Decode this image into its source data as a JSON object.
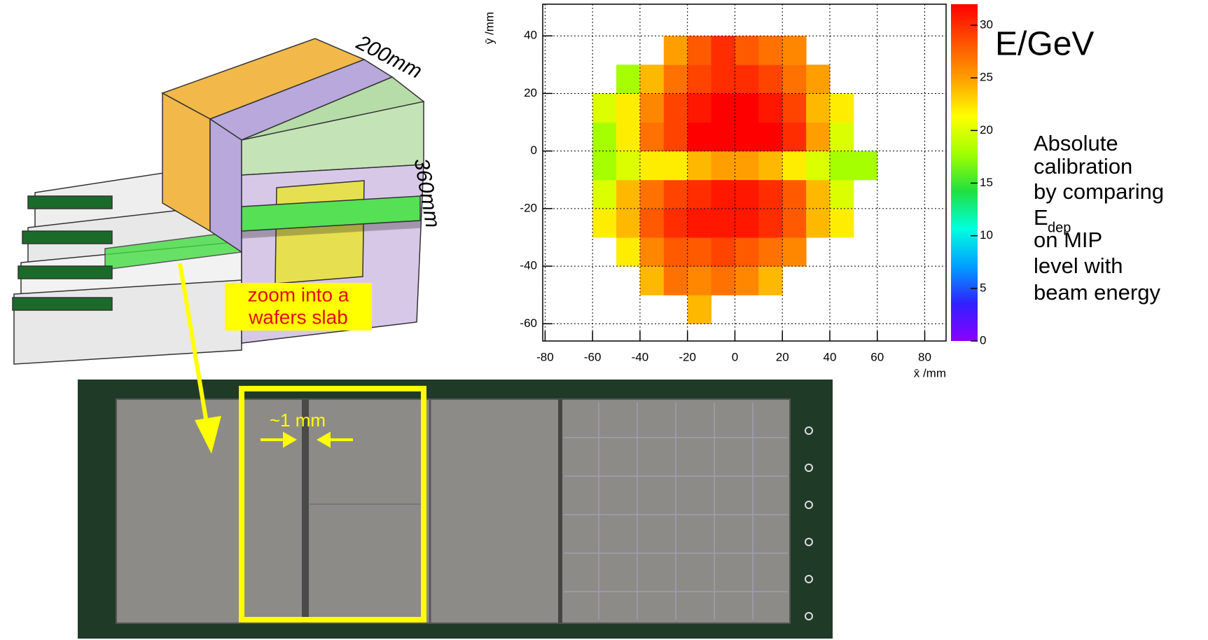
{
  "chart_data": {
    "type": "heatmap",
    "x_label": "x̄ /mm",
    "y_label": "ȳ /mm",
    "colorbar_title": "E/GeV",
    "xlim": [
      -81,
      89
    ],
    "ylim": [
      -66,
      51
    ],
    "zlim": [
      0,
      32
    ],
    "xticks": [
      -80,
      -60,
      -40,
      -20,
      0,
      20,
      40,
      60,
      80
    ],
    "yticks": [
      -60,
      -40,
      -20,
      0,
      20,
      40
    ],
    "zticks": [
      0,
      5,
      10,
      15,
      20,
      25,
      30
    ],
    "grid": true,
    "colormap": [
      "#8b00ff",
      "#3020ff",
      "#00a0ff",
      "#00ffe0",
      "#20e040",
      "#a0ff00",
      "#ffff00",
      "#ffa000",
      "#ff5000",
      "#ff0000"
    ],
    "x_bins": [
      -70,
      -60,
      -50,
      -40,
      -30,
      -20,
      -10,
      0,
      10,
      20,
      30,
      40,
      50,
      60,
      70
    ],
    "y_bins": [
      -60,
      -50,
      -40,
      -30,
      -20,
      -10,
      0,
      10,
      20,
      30,
      40
    ],
    "z": [
      [
        null,
        null,
        null,
        null,
        null,
        24,
        null,
        null,
        null,
        null,
        null,
        null,
        null,
        null
      ],
      [
        null,
        null,
        null,
        24,
        27,
        26,
        27,
        26,
        24,
        null,
        null,
        null,
        null,
        null
      ],
      [
        null,
        null,
        22,
        26,
        28,
        28,
        29,
        28,
        27,
        26,
        null,
        null,
        null,
        null
      ],
      [
        null,
        22,
        24,
        28,
        30,
        31,
        31,
        31,
        30,
        28,
        24,
        22,
        null,
        null
      ],
      [
        null,
        20,
        24,
        27,
        29,
        30,
        31,
        31,
        30,
        28,
        24,
        20,
        null,
        null
      ],
      [
        null,
        18,
        20,
        22,
        22,
        24,
        25,
        25,
        24,
        22,
        20,
        18,
        18,
        null
      ],
      [
        null,
        18,
        22,
        27,
        29,
        32,
        32,
        32,
        32,
        30,
        25,
        20,
        null,
        null
      ],
      [
        null,
        20,
        22,
        26,
        29,
        31,
        32,
        32,
        31,
        29,
        24,
        22,
        null,
        null
      ],
      [
        null,
        null,
        18,
        24,
        27,
        29,
        30,
        30,
        29,
        27,
        25,
        null,
        null,
        null
      ],
      [
        null,
        null,
        null,
        null,
        25,
        28,
        30,
        28,
        27,
        26,
        null,
        null,
        null,
        null
      ]
    ]
  },
  "annotation": {
    "lines": [
      "Absolute",
      "calibration",
      "by comparing"
    ],
    "symbol": "E",
    "subscript": "dep",
    "lines_after": [
      "on MIP",
      "level with",
      "beam energy"
    ]
  },
  "diagram": {
    "width_label": "200mm",
    "height_label": "360mm",
    "zoom_label": [
      "zoom into a",
      "wafers slab"
    ],
    "gap_label": "~1 mm"
  }
}
